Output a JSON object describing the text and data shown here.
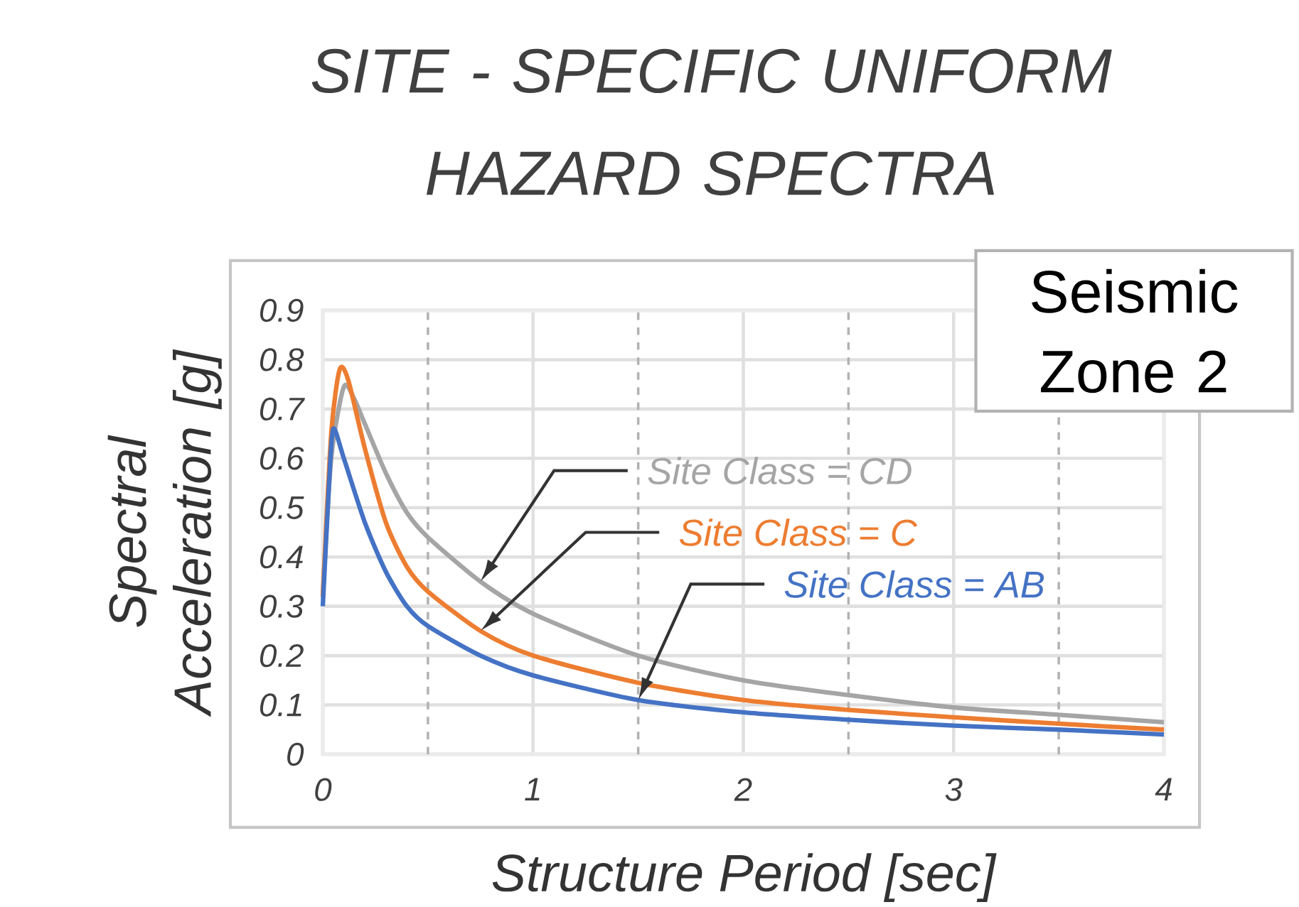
{
  "chart_data": {
    "type": "line",
    "title": "SITE - SPECIFIC UNIFORM HAZARD SPECTRA",
    "xlabel": "Structure Period [sec]",
    "ylabel": "Spectral Acceleration [g]",
    "annotations": [
      "Seismic Zone 2"
    ],
    "xlim": [
      0,
      4
    ],
    "ylim": [
      0,
      0.9
    ],
    "xticks": [
      0,
      {
        "value": 0.5,
        "label": null
      },
      1,
      {
        "value": 1.5,
        "label": null
      },
      2,
      {
        "value": 2.5,
        "label": null
      },
      3,
      {
        "value": 3.5,
        "label": null
      },
      4
    ],
    "yticks": [
      0,
      0.1,
      0.2,
      0.3,
      0.4,
      0.5,
      0.6,
      0.7,
      0.8,
      0.9
    ],
    "grid": true,
    "legend": false,
    "marker": "none",
    "line_style": "solid",
    "series": [
      {
        "name": "Site Class = CD",
        "color": "#a5a5a5",
        "x": [
          0,
          0.04,
          0.1,
          0.15,
          0.2,
          0.3,
          0.4,
          0.5,
          0.75,
          1,
          1.5,
          2,
          2.5,
          3,
          3.5,
          4
        ],
        "values": [
          0.32,
          0.6,
          0.745,
          0.72,
          0.67,
          0.57,
          0.49,
          0.44,
          0.35,
          0.285,
          0.2,
          0.15,
          0.12,
          0.095,
          0.08,
          0.065
        ]
      },
      {
        "name": "Site Class = C",
        "color": "#ed7d31",
        "x": [
          0,
          0.04,
          0.08,
          0.12,
          0.2,
          0.3,
          0.4,
          0.5,
          0.75,
          1,
          1.5,
          2,
          2.5,
          3,
          3.5,
          4
        ],
        "values": [
          0.32,
          0.65,
          0.78,
          0.76,
          0.62,
          0.47,
          0.38,
          0.33,
          0.25,
          0.2,
          0.145,
          0.11,
          0.09,
          0.075,
          0.062,
          0.05
        ]
      },
      {
        "name": "Site Class = AB",
        "color": "#4472c4",
        "x": [
          0,
          0.03,
          0.05,
          0.1,
          0.2,
          0.3,
          0.4,
          0.5,
          0.75,
          1,
          1.5,
          2,
          2.5,
          3,
          3.5,
          4
        ],
        "values": [
          0.3,
          0.55,
          0.66,
          0.6,
          0.47,
          0.37,
          0.3,
          0.26,
          0.2,
          0.16,
          0.11,
          0.085,
          0.07,
          0.058,
          0.05,
          0.04
        ]
      }
    ]
  }
}
